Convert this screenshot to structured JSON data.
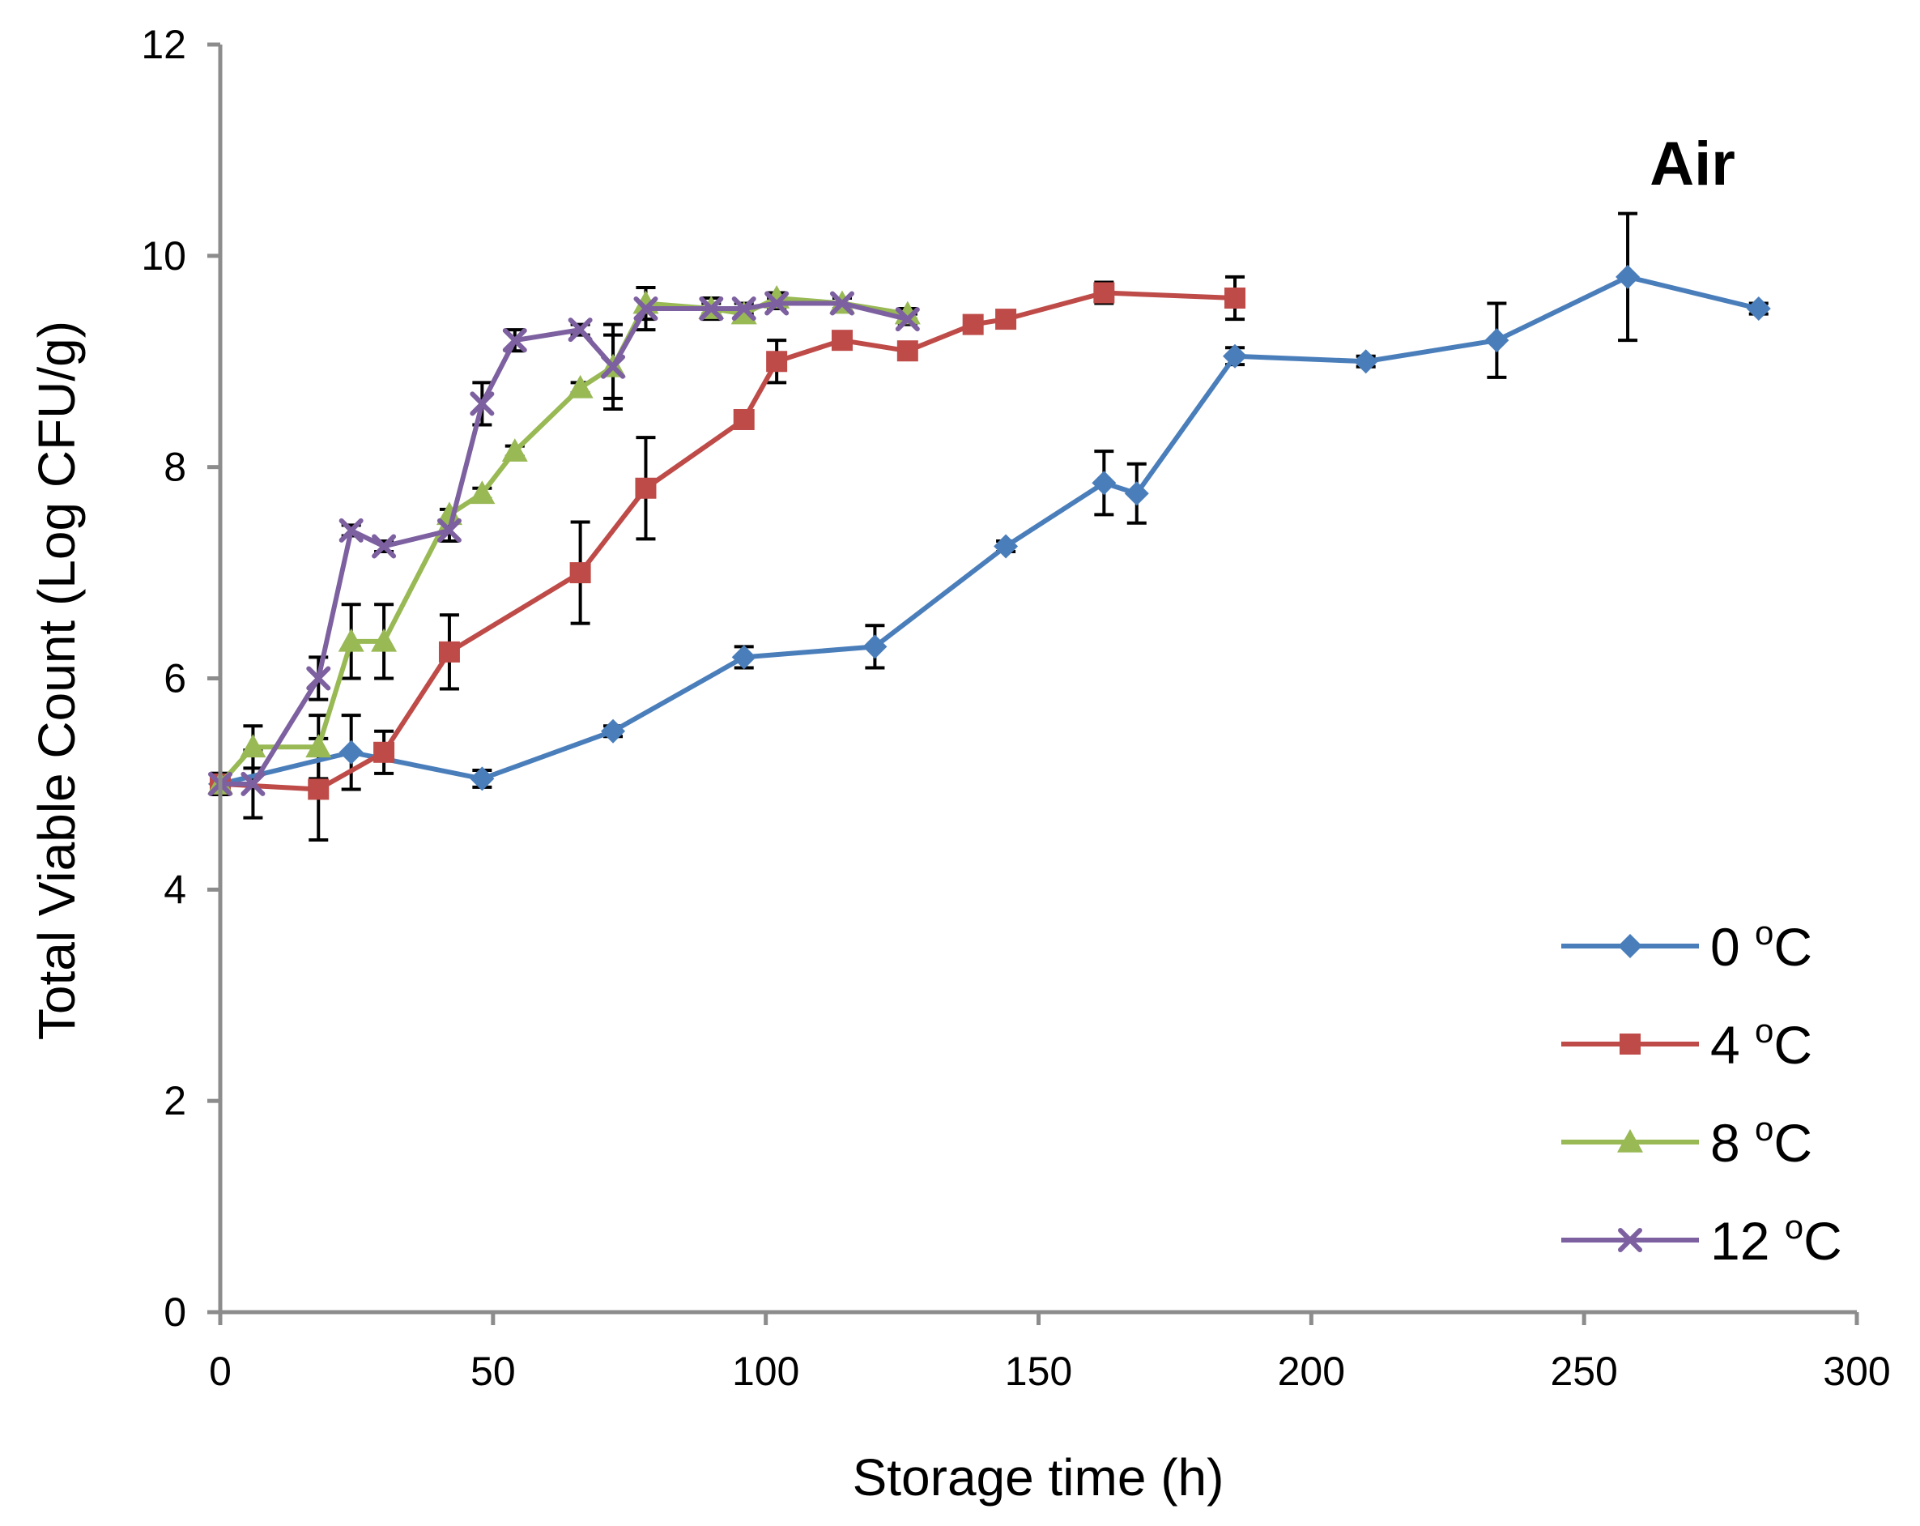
{
  "chart_data": {
    "type": "line",
    "title": "",
    "annotation": "Air",
    "xlabel": "Storage time (h)",
    "ylabel": "Total Viable Count (Log CFU/g)",
    "xlim": [
      0,
      300
    ],
    "ylim": [
      0,
      12
    ],
    "xticks": [
      "0",
      "50",
      "100",
      "150",
      "200",
      "250",
      "300"
    ],
    "yticks": [
      "0",
      "2",
      "4",
      "6",
      "8",
      "10",
      "12"
    ],
    "grid": false,
    "legend_position": "bottom-right",
    "colors": {
      "axis": "#8c8c8c",
      "errorbar": "#000000"
    },
    "series": [
      {
        "name": "0 °C",
        "temp": "0",
        "unit": "C",
        "marker": "diamond",
        "color": "#4a7ebb",
        "x": [
          0,
          24,
          48,
          72,
          96,
          120,
          144,
          162,
          168,
          186,
          210,
          234,
          258,
          282
        ],
        "y": [
          5.0,
          5.3,
          5.05,
          5.5,
          6.2,
          6.3,
          7.25,
          7.85,
          7.75,
          9.05,
          9.0,
          9.2,
          9.8,
          9.5
        ],
        "err": [
          0.1,
          0.35,
          0.08,
          0.05,
          0.1,
          0.2,
          0.05,
          0.3,
          0.28,
          0.08,
          0.05,
          0.35,
          0.6,
          0.05
        ]
      },
      {
        "name": "4 °C",
        "temp": "4",
        "unit": "C",
        "marker": "square",
        "color": "#be4b48",
        "x": [
          0,
          18,
          30,
          42,
          66,
          78,
          96,
          102,
          114,
          126,
          138,
          144,
          162,
          186
        ],
        "y": [
          5.0,
          4.95,
          5.3,
          6.25,
          7.0,
          7.8,
          8.45,
          9.0,
          9.2,
          9.1,
          9.35,
          9.4,
          9.65,
          9.6
        ],
        "err": [
          0.1,
          0.48,
          0.2,
          0.35,
          0.48,
          0.48,
          0.05,
          0.2,
          0.05,
          0.05,
          0.05,
          0.05,
          0.1,
          0.2
        ]
      },
      {
        "name": "8 °C",
        "temp": "8",
        "unit": "C",
        "marker": "triangle",
        "color": "#98b954",
        "x": [
          0,
          6,
          18,
          24,
          30,
          42,
          48,
          54,
          66,
          72,
          78,
          90,
          96,
          102,
          114,
          126
        ],
        "y": [
          5.0,
          5.35,
          5.35,
          6.35,
          6.35,
          7.55,
          7.75,
          8.15,
          8.75,
          8.95,
          9.55,
          9.5,
          9.45,
          9.6,
          9.55,
          9.45
        ],
        "err": [
          0.1,
          0.2,
          0.3,
          0.35,
          0.35,
          0.05,
          0.05,
          0.05,
          0.05,
          0.3,
          0.15,
          0.05,
          0.05,
          0.05,
          0.05,
          0.05
        ]
      },
      {
        "name": "12 °C",
        "temp": "12",
        "unit": "C",
        "marker": "x",
        "color": "#7d60a0",
        "x": [
          0,
          6,
          18,
          24,
          30,
          42,
          48,
          54,
          66,
          72,
          78,
          90,
          96,
          102,
          114,
          126
        ],
        "y": [
          5.0,
          5.0,
          6.0,
          7.4,
          7.25,
          7.4,
          8.6,
          9.2,
          9.3,
          8.95,
          9.5,
          9.5,
          9.5,
          9.55,
          9.55,
          9.4
        ],
        "err": [
          0.05,
          0.32,
          0.2,
          0.05,
          0.05,
          0.1,
          0.2,
          0.1,
          0.05,
          0.4,
          0.2,
          0.1,
          0.05,
          0.05,
          0.05,
          0.05
        ]
      }
    ]
  }
}
